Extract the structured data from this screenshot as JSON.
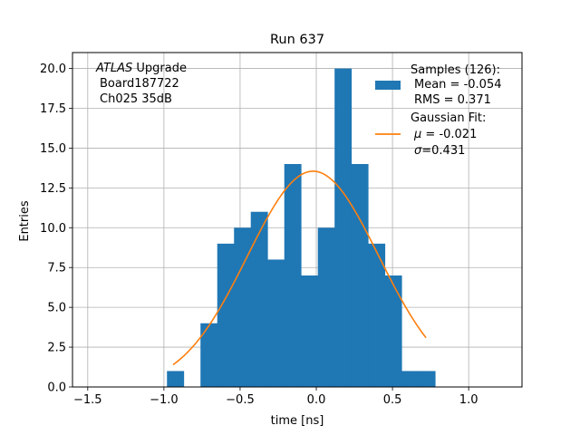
{
  "chart_data": {
    "type": "bar",
    "title": "Run 637",
    "xlabel": "time [ns]",
    "ylabel": "Entries",
    "xlim": [
      -1.6,
      1.35
    ],
    "ylim": [
      0,
      21
    ],
    "grid": true,
    "legend_position": "top-right",
    "bin_width": 0.11,
    "bins": [
      {
        "x0": -0.98,
        "count": 1
      },
      {
        "x0": -0.87,
        "count": 0
      },
      {
        "x0": -0.76,
        "count": 4
      },
      {
        "x0": -0.65,
        "count": 9
      },
      {
        "x0": -0.54,
        "count": 10
      },
      {
        "x0": -0.43,
        "count": 11
      },
      {
        "x0": -0.32,
        "count": 8
      },
      {
        "x0": -0.21,
        "count": 14
      },
      {
        "x0": -0.1,
        "count": 7
      },
      {
        "x0": 0.01,
        "count": 10
      },
      {
        "x0": 0.12,
        "count": 20
      },
      {
        "x0": 0.23,
        "count": 14
      },
      {
        "x0": 0.34,
        "count": 9
      },
      {
        "x0": 0.45,
        "count": 7
      },
      {
        "x0": 0.56,
        "count": 1
      },
      {
        "x0": 0.67,
        "count": 1
      }
    ],
    "fit": {
      "mu": -0.021,
      "sigma": 0.431,
      "amplitude": 13.55,
      "x_range": [
        -0.94,
        0.72
      ]
    },
    "xticks": [
      -1.5,
      -1.0,
      -0.5,
      0.0,
      0.5,
      1.0
    ],
    "xtick_labels": [
      "−1.5",
      "−1.0",
      "−0.5",
      "0.0",
      "0.5",
      "1.0"
    ],
    "yticks": [
      0,
      2.5,
      5,
      7.5,
      10,
      12.5,
      15,
      17.5,
      20
    ],
    "ytick_labels": [
      "0.0",
      "2.5",
      "5.0",
      "7.5",
      "10.0",
      "12.5",
      "15.0",
      "17.5",
      "20.0"
    ],
    "annotation": {
      "line1_italic": "ATLAS",
      "line1_rest": " Upgrade",
      "line2": "Board187722",
      "line3": "Ch025 35dB"
    },
    "legend": {
      "samples_label": "Samples (126):",
      "samples_mean": "Mean = -0.054",
      "samples_rms": "RMS = 0.371",
      "fit_label": "Gaussian Fit:",
      "fit_mu_symbol": "μ",
      "fit_mu_value": " = -0.021",
      "fit_sigma_symbol": "σ",
      "fit_sigma_value": "=0.431"
    },
    "colors": {
      "bars": "#1f77b4",
      "fit": "#ff7f0e",
      "grid": "#b0b0b0"
    }
  }
}
